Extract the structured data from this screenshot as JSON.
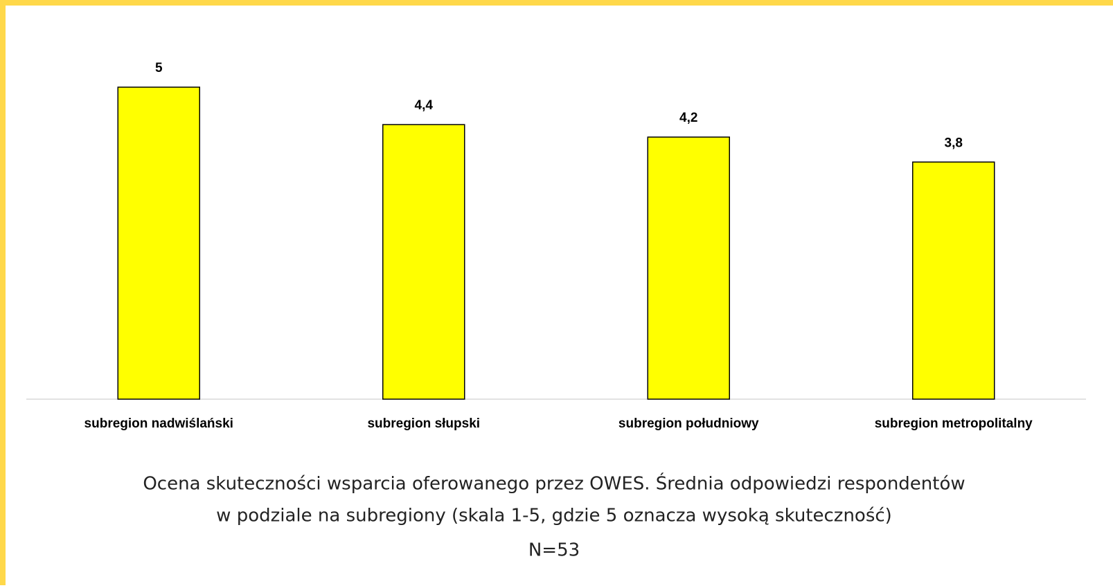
{
  "chart_data": {
    "type": "bar",
    "title": [
      "Ocena skuteczności wsparcia oferowanego przez OWES.  Średnia odpowiedzi respondentów",
      "w podziale na subregiony (skala 1-5, gdzie 5 oznacza wysoką skuteczność)"
    ],
    "subtitle": "N=53",
    "categories": [
      "subregion nadwiślański",
      "subregion słupski",
      "subregion południowy",
      "subregion metropolitalny"
    ],
    "values": [
      5,
      4.4,
      4.2,
      3.8
    ],
    "value_labels": [
      "5",
      "4,4",
      "4,2",
      "3,8"
    ],
    "color": "#ffff00"
  }
}
